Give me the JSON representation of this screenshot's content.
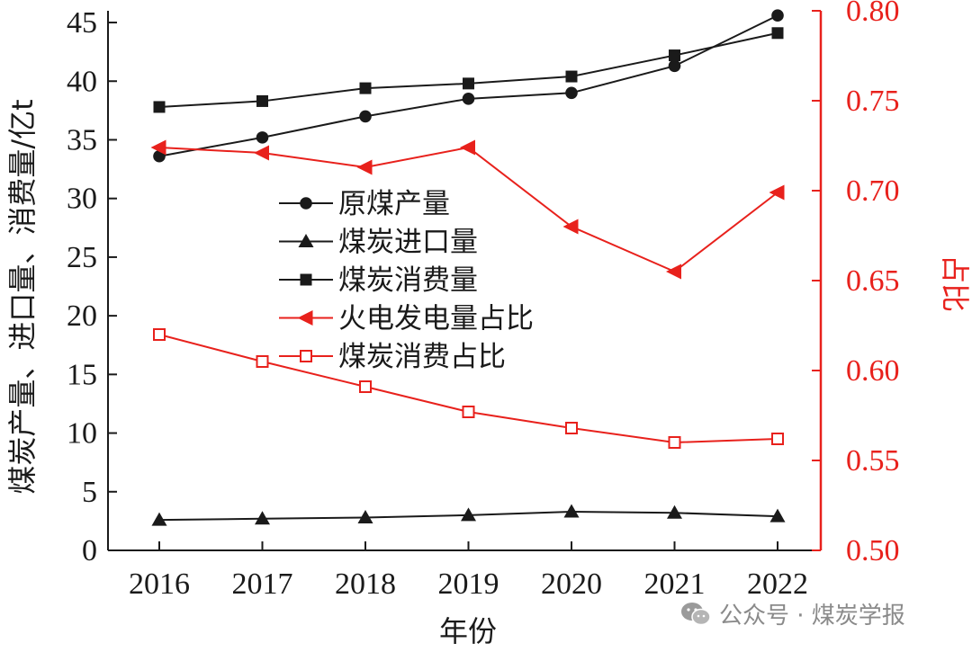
{
  "chart_data": {
    "type": "line",
    "categories": [
      "2016",
      "2017",
      "2018",
      "2019",
      "2020",
      "2021",
      "2022"
    ],
    "xlabel": "年份",
    "ylabel_left": "煤炭产量、进口量、消费量/亿t",
    "ylabel_right": "占比",
    "ylim_left": [
      0,
      46
    ],
    "ylim_right": [
      0.5,
      0.8
    ],
    "yticks_left": [
      "0",
      "5",
      "10",
      "15",
      "20",
      "25",
      "30",
      "35",
      "40",
      "45"
    ],
    "yticks_right": [
      "0.50",
      "0.55",
      "0.60",
      "0.65",
      "0.70",
      "0.75",
      "0.80"
    ],
    "legend_position": "center-left",
    "series": [
      {
        "name": "原煤产量",
        "axis": "left",
        "marker": "circle",
        "color": "#1a1a1a",
        "values": [
          33.6,
          35.2,
          37.0,
          38.5,
          39.0,
          41.3,
          45.6
        ]
      },
      {
        "name": "煤炭进口量",
        "axis": "left",
        "marker": "triangle-up",
        "color": "#1a1a1a",
        "values": [
          2.6,
          2.7,
          2.8,
          3.0,
          3.3,
          3.2,
          2.9
        ]
      },
      {
        "name": "煤炭消费量",
        "axis": "left",
        "marker": "square",
        "color": "#1a1a1a",
        "values": [
          37.8,
          38.3,
          39.4,
          39.8,
          40.4,
          42.2,
          44.1
        ]
      },
      {
        "name": "火电发电量占比",
        "axis": "right",
        "marker": "triangle-left",
        "color": "#e8211c",
        "values": [
          0.724,
          0.721,
          0.713,
          0.724,
          0.68,
          0.655,
          0.699
        ]
      },
      {
        "name": "煤炭消费占比",
        "axis": "right",
        "marker": "square-open",
        "color": "#e8211c",
        "values": [
          0.62,
          0.605,
          0.591,
          0.577,
          0.568,
          0.56,
          0.562
        ]
      }
    ]
  },
  "watermark": {
    "text": "公众号 · 煤炭学报",
    "icon": "wechat-icon",
    "color": "#8a8a8a"
  }
}
